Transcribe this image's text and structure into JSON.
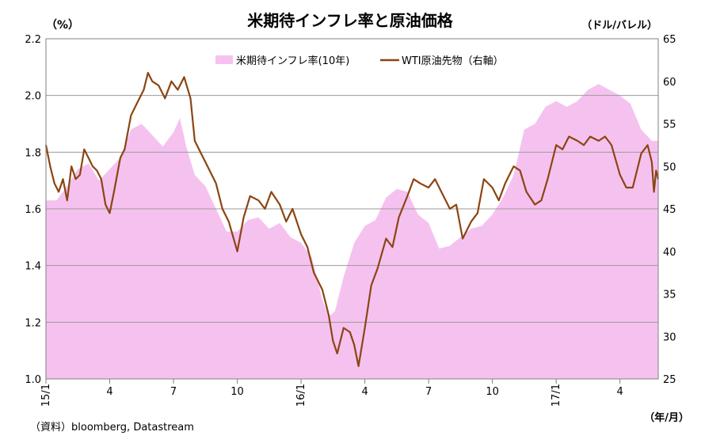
{
  "chart_data": {
    "type": "area+line",
    "title": "米期待インフレ率と原油価格",
    "ylabel_left": "（%）",
    "ylabel_right": "（ドル/バレル）",
    "xlabel": "（年/月）",
    "source": "（資料）bloomberg, Datastream",
    "left_axis": {
      "min": 1.0,
      "max": 2.2,
      "ticks": [
        "1.0",
        "1.2",
        "1.4",
        "1.6",
        "1.8",
        "2.0",
        "2.2"
      ]
    },
    "right_axis": {
      "min": 25,
      "max": 65,
      "ticks": [
        "25",
        "30",
        "35",
        "40",
        "45",
        "50",
        "55",
        "60",
        "65"
      ]
    },
    "x_ticks": [
      {
        "label": "15/1",
        "month_index": 0,
        "rotated": true
      },
      {
        "label": "4",
        "month_index": 3,
        "rotated": false
      },
      {
        "label": "7",
        "month_index": 6,
        "rotated": false
      },
      {
        "label": "10",
        "month_index": 9,
        "rotated": false
      },
      {
        "label": "16/1",
        "month_index": 12,
        "rotated": true
      },
      {
        "label": "4",
        "month_index": 15,
        "rotated": false
      },
      {
        "label": "7",
        "month_index": 18,
        "rotated": false
      },
      {
        "label": "10",
        "month_index": 21,
        "rotated": false
      },
      {
        "label": "17/1",
        "month_index": 24,
        "rotated": true
      },
      {
        "label": "4",
        "month_index": 27,
        "rotated": false
      }
    ],
    "x_range_months": [
      0,
      28.8
    ],
    "gridlines": "horizontal at left-axis ticks",
    "legend_position": "top-center",
    "series": [
      {
        "name": "米期待インフレ率(10年)",
        "type": "area",
        "axis": "left",
        "color": "#f5c2ef",
        "points": [
          [
            0.0,
            1.63
          ],
          [
            0.5,
            1.63
          ],
          [
            1.0,
            1.68
          ],
          [
            1.5,
            1.74
          ],
          [
            2.0,
            1.76
          ],
          [
            2.5,
            1.7
          ],
          [
            3.0,
            1.74
          ],
          [
            3.5,
            1.78
          ],
          [
            4.0,
            1.88
          ],
          [
            4.5,
            1.9
          ],
          [
            5.0,
            1.86
          ],
          [
            5.5,
            1.82
          ],
          [
            6.0,
            1.87
          ],
          [
            6.3,
            1.92
          ],
          [
            6.6,
            1.82
          ],
          [
            7.0,
            1.72
          ],
          [
            7.5,
            1.68
          ],
          [
            8.0,
            1.6
          ],
          [
            8.5,
            1.52
          ],
          [
            9.0,
            1.52
          ],
          [
            9.5,
            1.56
          ],
          [
            10.0,
            1.57
          ],
          [
            10.5,
            1.53
          ],
          [
            11.0,
            1.55
          ],
          [
            11.5,
            1.5
          ],
          [
            12.0,
            1.48
          ],
          [
            12.5,
            1.43
          ],
          [
            13.0,
            1.28
          ],
          [
            13.3,
            1.22
          ],
          [
            13.6,
            1.24
          ],
          [
            14.0,
            1.36
          ],
          [
            14.5,
            1.48
          ],
          [
            15.0,
            1.54
          ],
          [
            15.5,
            1.56
          ],
          [
            16.0,
            1.64
          ],
          [
            16.5,
            1.67
          ],
          [
            17.0,
            1.66
          ],
          [
            17.5,
            1.58
          ],
          [
            18.0,
            1.55
          ],
          [
            18.5,
            1.46
          ],
          [
            19.0,
            1.47
          ],
          [
            19.5,
            1.5
          ],
          [
            20.0,
            1.53
          ],
          [
            20.5,
            1.54
          ],
          [
            21.0,
            1.58
          ],
          [
            21.5,
            1.64
          ],
          [
            22.0,
            1.72
          ],
          [
            22.5,
            1.88
          ],
          [
            23.0,
            1.9
          ],
          [
            23.5,
            1.96
          ],
          [
            24.0,
            1.98
          ],
          [
            24.5,
            1.96
          ],
          [
            25.0,
            1.98
          ],
          [
            25.5,
            2.02
          ],
          [
            26.0,
            2.04
          ],
          [
            26.5,
            2.02
          ],
          [
            27.0,
            2.0
          ],
          [
            27.5,
            1.97
          ],
          [
            28.0,
            1.88
          ],
          [
            28.5,
            1.84
          ],
          [
            28.8,
            1.84
          ]
        ]
      },
      {
        "name": "WTI原油先物（右軸）",
        "type": "line",
        "axis": "right",
        "color": "#8b4513",
        "points": [
          [
            0.0,
            52.5
          ],
          [
            0.2,
            50.0
          ],
          [
            0.4,
            48.0
          ],
          [
            0.6,
            47.0
          ],
          [
            0.8,
            48.5
          ],
          [
            1.0,
            46.0
          ],
          [
            1.2,
            50.0
          ],
          [
            1.4,
            48.5
          ],
          [
            1.6,
            49.0
          ],
          [
            1.8,
            52.0
          ],
          [
            2.0,
            51.0
          ],
          [
            2.2,
            50.0
          ],
          [
            2.4,
            49.5
          ],
          [
            2.6,
            48.5
          ],
          [
            2.8,
            45.5
          ],
          [
            3.0,
            44.5
          ],
          [
            3.2,
            47.0
          ],
          [
            3.5,
            51.0
          ],
          [
            3.7,
            52.0
          ],
          [
            4.0,
            56.0
          ],
          [
            4.3,
            57.5
          ],
          [
            4.6,
            59.0
          ],
          [
            4.8,
            61.0
          ],
          [
            5.0,
            60.0
          ],
          [
            5.3,
            59.5
          ],
          [
            5.6,
            58.0
          ],
          [
            5.9,
            60.0
          ],
          [
            6.2,
            59.0
          ],
          [
            6.5,
            60.5
          ],
          [
            6.8,
            58.0
          ],
          [
            7.0,
            53.0
          ],
          [
            7.3,
            51.5
          ],
          [
            7.6,
            50.0
          ],
          [
            8.0,
            48.0
          ],
          [
            8.3,
            45.0
          ],
          [
            8.6,
            43.5
          ],
          [
            9.0,
            40.0
          ],
          [
            9.3,
            44.0
          ],
          [
            9.6,
            46.5
          ],
          [
            10.0,
            46.0
          ],
          [
            10.3,
            45.0
          ],
          [
            10.6,
            47.0
          ],
          [
            11.0,
            45.5
          ],
          [
            11.3,
            43.5
          ],
          [
            11.6,
            45.0
          ],
          [
            12.0,
            42.0
          ],
          [
            12.3,
            40.5
          ],
          [
            12.6,
            37.5
          ],
          [
            13.0,
            35.5
          ],
          [
            13.3,
            32.5
          ],
          [
            13.5,
            29.5
          ],
          [
            13.7,
            28.0
          ],
          [
            14.0,
            31.0
          ],
          [
            14.3,
            30.5
          ],
          [
            14.5,
            29.0
          ],
          [
            14.7,
            26.5
          ],
          [
            15.0,
            31.0
          ],
          [
            15.3,
            36.0
          ],
          [
            15.6,
            38.0
          ],
          [
            16.0,
            41.5
          ],
          [
            16.3,
            40.5
          ],
          [
            16.6,
            44.0
          ],
          [
            17.0,
            46.5
          ],
          [
            17.3,
            48.5
          ],
          [
            17.6,
            48.0
          ],
          [
            18.0,
            47.5
          ],
          [
            18.3,
            48.5
          ],
          [
            18.6,
            47.0
          ],
          [
            19.0,
            45.0
          ],
          [
            19.3,
            45.5
          ],
          [
            19.6,
            41.5
          ],
          [
            20.0,
            43.5
          ],
          [
            20.3,
            44.5
          ],
          [
            20.6,
            48.5
          ],
          [
            21.0,
            47.5
          ],
          [
            21.3,
            46.0
          ],
          [
            21.6,
            48.0
          ],
          [
            22.0,
            50.0
          ],
          [
            22.3,
            49.5
          ],
          [
            22.6,
            47.0
          ],
          [
            23.0,
            45.5
          ],
          [
            23.3,
            46.0
          ],
          [
            23.6,
            48.5
          ],
          [
            24.0,
            52.5
          ],
          [
            24.3,
            52.0
          ],
          [
            24.6,
            53.5
          ],
          [
            25.0,
            53.0
          ],
          [
            25.3,
            52.5
          ],
          [
            25.6,
            53.5
          ],
          [
            26.0,
            53.0
          ],
          [
            26.3,
            53.5
          ],
          [
            26.6,
            52.5
          ],
          [
            27.0,
            49.0
          ],
          [
            27.3,
            47.5
          ],
          [
            27.6,
            47.5
          ],
          [
            28.0,
            51.5
          ],
          [
            28.3,
            52.5
          ],
          [
            28.5,
            50.5
          ],
          [
            28.6,
            47.0
          ],
          [
            28.7,
            49.5
          ],
          [
            28.8,
            48.5
          ]
        ]
      }
    ]
  }
}
